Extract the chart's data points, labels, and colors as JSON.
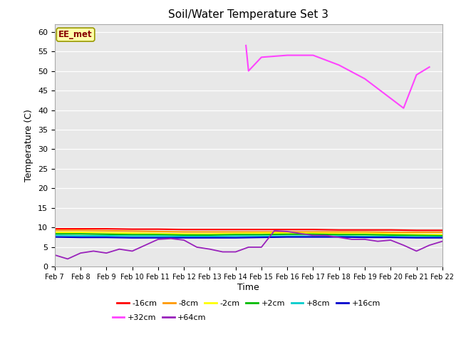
{
  "title": "Soil/Water Temperature Set 3",
  "xlabel": "Time",
  "ylabel": "Temperature (C)",
  "ylim": [
    0,
    62
  ],
  "yticks": [
    0,
    5,
    10,
    15,
    20,
    25,
    30,
    35,
    40,
    45,
    50,
    55,
    60
  ],
  "xtick_labels": [
    "Feb 7",
    "Feb 8",
    "Feb 9",
    "Feb 10",
    "Feb 11",
    "Feb 12",
    "Feb 13",
    "Feb 14",
    "Feb 15",
    "Feb 16",
    "Feb 17",
    "Feb 18",
    "Feb 19",
    "Feb 20",
    "Feb 21",
    "Feb 22"
  ],
  "background_color": "#e8e8e8",
  "plot_bg_color": "#e8e8e8",
  "station_label": "EE_met",
  "legend_entries_row1": [
    "-16cm",
    "-8cm",
    "-2cm",
    "+2cm",
    "+8cm",
    "+16cm"
  ],
  "legend_colors_row1": [
    "#ff0000",
    "#ff9900",
    "#ffff00",
    "#00bb00",
    "#00cccc",
    "#0000cc"
  ],
  "legend_entries_row2": [
    "+32cm",
    "+64cm"
  ],
  "legend_colors_row2": [
    "#ff44ff",
    "#9922bb"
  ],
  "series": {
    "neg16cm": {
      "color": "#ff0000",
      "values": [
        9.7,
        9.7,
        9.7,
        9.6,
        9.6,
        9.5,
        9.5,
        9.5,
        9.5,
        9.5,
        9.5,
        9.4,
        9.4,
        9.4,
        9.3,
        9.3
      ]
    },
    "neg8cm": {
      "color": "#ff9900",
      "values": [
        9.3,
        9.3,
        9.2,
        9.1,
        9.0,
        8.9,
        8.9,
        8.9,
        8.9,
        8.9,
        8.9,
        8.9,
        8.9,
        8.8,
        8.8,
        8.8
      ]
    },
    "neg2cm": {
      "color": "#ffff00",
      "values": [
        8.8,
        8.8,
        8.7,
        8.6,
        8.5,
        8.4,
        8.4,
        8.5,
        8.6,
        8.6,
        8.6,
        8.5,
        8.5,
        8.4,
        8.3,
        8.2
      ]
    },
    "pos2cm": {
      "color": "#00bb00",
      "values": [
        8.4,
        8.4,
        8.3,
        8.2,
        8.2,
        8.1,
        8.1,
        8.2,
        8.2,
        8.3,
        8.3,
        8.2,
        8.2,
        8.1,
        8.0,
        7.9
      ]
    },
    "pos8cm": {
      "color": "#00cccc",
      "values": [
        8.0,
        7.9,
        7.9,
        7.8,
        7.8,
        7.7,
        7.7,
        7.8,
        7.8,
        7.8,
        7.8,
        7.8,
        7.7,
        7.7,
        7.6,
        7.6
      ]
    },
    "pos16cm": {
      "color": "#0000cc",
      "values": [
        7.6,
        7.5,
        7.5,
        7.4,
        7.4,
        7.4,
        7.4,
        7.4,
        7.5,
        7.6,
        7.6,
        7.6,
        7.5,
        7.5,
        7.4,
        7.4
      ]
    },
    "pos32cm": {
      "color": "#ff44ff",
      "values_x": [
        7.4,
        7.5,
        8.0,
        9.0,
        10.0,
        11.0,
        12.0,
        13.0,
        13.5,
        14.0,
        14.5
      ],
      "values_y": [
        56.5,
        50.0,
        53.5,
        54.0,
        54.0,
        51.5,
        48.0,
        43.0,
        40.5,
        49.0,
        51.0
      ]
    },
    "pos64cm": {
      "color": "#9922bb",
      "x": [
        0,
        0.5,
        1.0,
        1.5,
        2.0,
        2.5,
        3.0,
        3.5,
        4.0,
        4.5,
        5.0,
        5.5,
        6.0,
        6.5,
        7.0,
        7.5,
        8.0,
        8.5,
        9.0,
        9.5,
        10.0,
        10.5,
        11.0,
        11.5,
        12.0,
        12.5,
        13.0,
        13.5,
        14.0,
        14.5,
        15.0
      ],
      "values": [
        3.0,
        2.0,
        3.5,
        4.0,
        3.5,
        4.5,
        4.0,
        5.5,
        7.0,
        7.2,
        6.8,
        5.0,
        4.5,
        3.8,
        3.8,
        5.0,
        5.0,
        9.2,
        9.0,
        8.5,
        8.0,
        8.0,
        7.5,
        7.0,
        7.0,
        6.5,
        6.8,
        5.5,
        4.0,
        5.5,
        6.5
      ]
    }
  }
}
